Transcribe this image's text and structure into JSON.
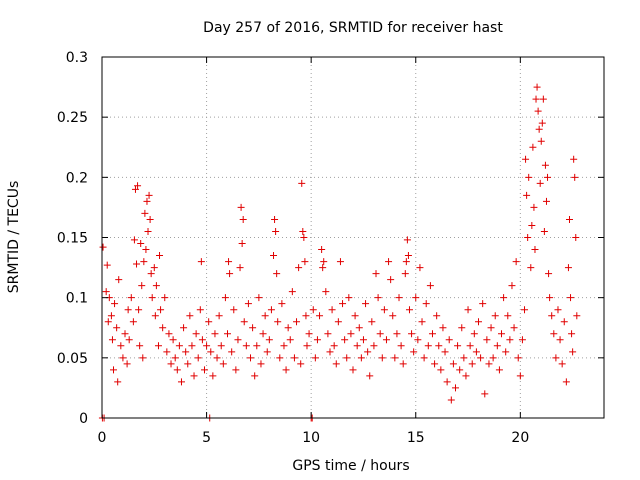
{
  "chart_data": {
    "type": "scatter",
    "title": "Day 257 of 2016, SRMTID for receiver hast",
    "xlabel": "GPS time / hours",
    "ylabel": "SRMTID / TECUs",
    "xlim": [
      0,
      24
    ],
    "ylim": [
      0,
      0.3
    ],
    "xticks": [
      0,
      5,
      10,
      15,
      20
    ],
    "xtick_labels": [
      "0",
      "5",
      "10",
      "15",
      "20"
    ],
    "yticks": [
      0,
      0.05,
      0.1,
      0.15,
      0.2,
      0.25,
      0.3
    ],
    "ytick_labels": [
      "0",
      "0.05",
      "0.1",
      "0.15",
      "0.2",
      "0.25",
      "0.3"
    ],
    "grid": true,
    "marker": "plus",
    "color": "#e00000",
    "series": [
      {
        "name": "SRMTID",
        "points": [
          [
            0.02,
            0.0
          ],
          [
            0.05,
            0.142
          ],
          [
            0.1,
            0.0
          ],
          [
            0.2,
            0.105
          ],
          [
            0.25,
            0.127
          ],
          [
            0.3,
            0.08
          ],
          [
            0.35,
            0.1
          ],
          [
            0.45,
            0.085
          ],
          [
            0.5,
            0.065
          ],
          [
            0.55,
            0.04
          ],
          [
            0.6,
            0.095
          ],
          [
            0.7,
            0.075
          ],
          [
            0.75,
            0.03
          ],
          [
            0.8,
            0.115
          ],
          [
            0.9,
            0.06
          ],
          [
            1.0,
            0.05
          ],
          [
            1.1,
            0.07
          ],
          [
            1.2,
            0.045
          ],
          [
            1.25,
            0.09
          ],
          [
            1.3,
            0.065
          ],
          [
            1.4,
            0.1
          ],
          [
            1.5,
            0.08
          ],
          [
            1.55,
            0.148
          ],
          [
            1.6,
            0.19
          ],
          [
            1.65,
            0.128
          ],
          [
            1.7,
            0.193
          ],
          [
            1.75,
            0.09
          ],
          [
            1.8,
            0.06
          ],
          [
            1.85,
            0.145
          ],
          [
            1.9,
            0.11
          ],
          [
            1.95,
            0.05
          ],
          [
            2.0,
            0.13
          ],
          [
            2.05,
            0.17
          ],
          [
            2.1,
            0.14
          ],
          [
            2.15,
            0.18
          ],
          [
            2.2,
            0.155
          ],
          [
            2.25,
            0.185
          ],
          [
            2.3,
            0.165
          ],
          [
            2.35,
            0.12
          ],
          [
            2.4,
            0.1
          ],
          [
            2.5,
            0.125
          ],
          [
            2.55,
            0.085
          ],
          [
            2.6,
            0.11
          ],
          [
            2.7,
            0.06
          ],
          [
            2.75,
            0.135
          ],
          [
            2.8,
            0.09
          ],
          [
            2.9,
            0.075
          ],
          [
            3.0,
            0.1
          ],
          [
            3.1,
            0.055
          ],
          [
            3.2,
            0.07
          ],
          [
            3.3,
            0.045
          ],
          [
            3.4,
            0.065
          ],
          [
            3.5,
            0.05
          ],
          [
            3.6,
            0.04
          ],
          [
            3.7,
            0.06
          ],
          [
            3.8,
            0.03
          ],
          [
            3.9,
            0.075
          ],
          [
            4.0,
            0.055
          ],
          [
            4.1,
            0.045
          ],
          [
            4.2,
            0.085
          ],
          [
            4.3,
            0.06
          ],
          [
            4.4,
            0.035
          ],
          [
            4.5,
            0.07
          ],
          [
            4.6,
            0.05
          ],
          [
            4.7,
            0.09
          ],
          [
            4.75,
            0.13
          ],
          [
            4.8,
            0.065
          ],
          [
            4.9,
            0.04
          ],
          [
            5.0,
            0.06
          ],
          [
            5.1,
            0.08
          ],
          [
            5.15,
            0.0
          ],
          [
            5.2,
            0.055
          ],
          [
            5.3,
            0.035
          ],
          [
            5.4,
            0.07
          ],
          [
            5.5,
            0.05
          ],
          [
            5.6,
            0.085
          ],
          [
            5.7,
            0.06
          ],
          [
            5.8,
            0.045
          ],
          [
            5.9,
            0.1
          ],
          [
            6.0,
            0.07
          ],
          [
            6.05,
            0.13
          ],
          [
            6.1,
            0.12
          ],
          [
            6.2,
            0.055
          ],
          [
            6.3,
            0.09
          ],
          [
            6.4,
            0.04
          ],
          [
            6.5,
            0.065
          ],
          [
            6.6,
            0.125
          ],
          [
            6.65,
            0.175
          ],
          [
            6.7,
            0.145
          ],
          [
            6.75,
            0.165
          ],
          [
            6.8,
            0.08
          ],
          [
            6.9,
            0.06
          ],
          [
            7.0,
            0.095
          ],
          [
            7.1,
            0.05
          ],
          [
            7.2,
            0.075
          ],
          [
            7.3,
            0.035
          ],
          [
            7.4,
            0.06
          ],
          [
            7.5,
            0.1
          ],
          [
            7.6,
            0.045
          ],
          [
            7.7,
            0.07
          ],
          [
            7.8,
            0.085
          ],
          [
            7.9,
            0.055
          ],
          [
            8.0,
            0.065
          ],
          [
            8.1,
            0.09
          ],
          [
            8.2,
            0.135
          ],
          [
            8.25,
            0.165
          ],
          [
            8.3,
            0.155
          ],
          [
            8.35,
            0.12
          ],
          [
            8.4,
            0.08
          ],
          [
            8.5,
            0.05
          ],
          [
            8.6,
            0.095
          ],
          [
            8.7,
            0.06
          ],
          [
            8.8,
            0.04
          ],
          [
            8.9,
            0.075
          ],
          [
            9.0,
            0.065
          ],
          [
            9.1,
            0.105
          ],
          [
            9.2,
            0.05
          ],
          [
            9.3,
            0.08
          ],
          [
            9.4,
            0.125
          ],
          [
            9.5,
            0.045
          ],
          [
            9.55,
            0.195
          ],
          [
            9.6,
            0.155
          ],
          [
            9.65,
            0.15
          ],
          [
            9.7,
            0.13
          ],
          [
            9.75,
            0.085
          ],
          [
            9.8,
            0.06
          ],
          [
            9.9,
            0.07
          ],
          [
            10.0,
            0.0
          ],
          [
            10.05,
            0.0
          ],
          [
            10.1,
            0.09
          ],
          [
            10.2,
            0.05
          ],
          [
            10.3,
            0.065
          ],
          [
            10.4,
            0.085
          ],
          [
            10.5,
            0.14
          ],
          [
            10.55,
            0.125
          ],
          [
            10.6,
            0.13
          ],
          [
            10.7,
            0.105
          ],
          [
            10.8,
            0.07
          ],
          [
            10.9,
            0.055
          ],
          [
            11.0,
            0.09
          ],
          [
            11.1,
            0.06
          ],
          [
            11.2,
            0.045
          ],
          [
            11.3,
            0.08
          ],
          [
            11.4,
            0.13
          ],
          [
            11.5,
            0.095
          ],
          [
            11.6,
            0.065
          ],
          [
            11.7,
            0.05
          ],
          [
            11.8,
            0.1
          ],
          [
            11.9,
            0.07
          ],
          [
            12.0,
            0.04
          ],
          [
            12.1,
            0.085
          ],
          [
            12.2,
            0.06
          ],
          [
            12.3,
            0.075
          ],
          [
            12.4,
            0.05
          ],
          [
            12.5,
            0.065
          ],
          [
            12.6,
            0.095
          ],
          [
            12.7,
            0.055
          ],
          [
            12.8,
            0.035
          ],
          [
            12.9,
            0.08
          ],
          [
            13.0,
            0.06
          ],
          [
            13.1,
            0.12
          ],
          [
            13.2,
            0.1
          ],
          [
            13.3,
            0.07
          ],
          [
            13.4,
            0.05
          ],
          [
            13.5,
            0.09
          ],
          [
            13.6,
            0.065
          ],
          [
            13.7,
            0.13
          ],
          [
            13.8,
            0.115
          ],
          [
            13.9,
            0.085
          ],
          [
            14.0,
            0.05
          ],
          [
            14.1,
            0.07
          ],
          [
            14.2,
            0.1
          ],
          [
            14.3,
            0.06
          ],
          [
            14.4,
            0.045
          ],
          [
            14.5,
            0.12
          ],
          [
            14.55,
            0.13
          ],
          [
            14.6,
            0.148
          ],
          [
            14.65,
            0.135
          ],
          [
            14.7,
            0.09
          ],
          [
            14.8,
            0.07
          ],
          [
            14.9,
            0.055
          ],
          [
            15.0,
            0.1
          ],
          [
            15.1,
            0.065
          ],
          [
            15.2,
            0.125
          ],
          [
            15.3,
            0.08
          ],
          [
            15.4,
            0.05
          ],
          [
            15.5,
            0.095
          ],
          [
            15.6,
            0.06
          ],
          [
            15.7,
            0.11
          ],
          [
            15.8,
            0.07
          ],
          [
            15.9,
            0.045
          ],
          [
            16.0,
            0.085
          ],
          [
            16.1,
            0.06
          ],
          [
            16.2,
            0.04
          ],
          [
            16.3,
            0.075
          ],
          [
            16.4,
            0.055
          ],
          [
            16.5,
            0.03
          ],
          [
            16.6,
            0.065
          ],
          [
            16.7,
            0.015
          ],
          [
            16.8,
            0.045
          ],
          [
            16.9,
            0.025
          ],
          [
            17.0,
            0.06
          ],
          [
            17.1,
            0.04
          ],
          [
            17.2,
            0.075
          ],
          [
            17.3,
            0.05
          ],
          [
            17.4,
            0.035
          ],
          [
            17.5,
            0.09
          ],
          [
            17.6,
            0.06
          ],
          [
            17.7,
            0.045
          ],
          [
            17.8,
            0.07
          ],
          [
            17.9,
            0.055
          ],
          [
            18.0,
            0.08
          ],
          [
            18.1,
            0.05
          ],
          [
            18.2,
            0.095
          ],
          [
            18.3,
            0.02
          ],
          [
            18.4,
            0.065
          ],
          [
            18.5,
            0.045
          ],
          [
            18.6,
            0.075
          ],
          [
            18.7,
            0.05
          ],
          [
            18.8,
            0.085
          ],
          [
            18.9,
            0.06
          ],
          [
            19.0,
            0.04
          ],
          [
            19.1,
            0.07
          ],
          [
            19.2,
            0.1
          ],
          [
            19.3,
            0.055
          ],
          [
            19.4,
            0.085
          ],
          [
            19.5,
            0.065
          ],
          [
            19.6,
            0.11
          ],
          [
            19.7,
            0.075
          ],
          [
            19.8,
            0.13
          ],
          [
            19.9,
            0.05
          ],
          [
            20.0,
            0.035
          ],
          [
            20.1,
            0.065
          ],
          [
            20.2,
            0.09
          ],
          [
            20.25,
            0.215
          ],
          [
            20.3,
            0.185
          ],
          [
            20.35,
            0.15
          ],
          [
            20.4,
            0.2
          ],
          [
            20.5,
            0.125
          ],
          [
            20.55,
            0.16
          ],
          [
            20.6,
            0.225
          ],
          [
            20.65,
            0.175
          ],
          [
            20.7,
            0.14
          ],
          [
            20.75,
            0.265
          ],
          [
            20.8,
            0.275
          ],
          [
            20.85,
            0.255
          ],
          [
            20.9,
            0.24
          ],
          [
            20.95,
            0.195
          ],
          [
            21.0,
            0.23
          ],
          [
            21.05,
            0.245
          ],
          [
            21.1,
            0.265
          ],
          [
            21.15,
            0.155
          ],
          [
            21.2,
            0.21
          ],
          [
            21.25,
            0.18
          ],
          [
            21.3,
            0.2
          ],
          [
            21.35,
            0.12
          ],
          [
            21.4,
            0.1
          ],
          [
            21.5,
            0.085
          ],
          [
            21.6,
            0.07
          ],
          [
            21.7,
            0.05
          ],
          [
            21.8,
            0.09
          ],
          [
            21.9,
            0.065
          ],
          [
            22.0,
            0.045
          ],
          [
            22.1,
            0.08
          ],
          [
            22.2,
            0.03
          ],
          [
            22.3,
            0.125
          ],
          [
            22.35,
            0.165
          ],
          [
            22.4,
            0.1
          ],
          [
            22.45,
            0.07
          ],
          [
            22.5,
            0.055
          ],
          [
            22.55,
            0.215
          ],
          [
            22.6,
            0.2
          ],
          [
            22.65,
            0.15
          ],
          [
            22.7,
            0.085
          ]
        ]
      }
    ]
  }
}
